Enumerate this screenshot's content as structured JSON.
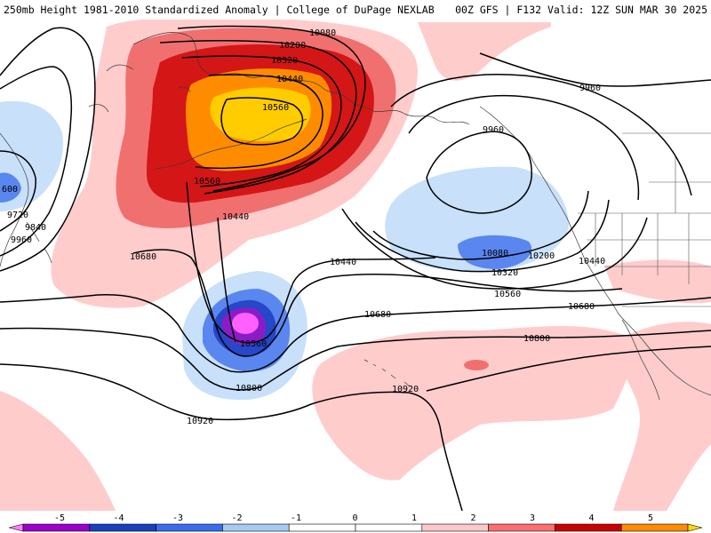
{
  "header": {
    "title": "250mb Height 1981-2010 Standardized Anomaly | College of DuPage NEXLAB",
    "run_info": "00Z GFS | F132 Valid: 12Z SUN MAR 30 2025"
  },
  "contour_labels": [
    {
      "id": "c10080-n",
      "text": "10080"
    },
    {
      "id": "c10200-n",
      "text": "10200"
    },
    {
      "id": "c10320-n",
      "text": "10320"
    },
    {
      "id": "c10440-n",
      "text": "10440"
    },
    {
      "id": "c10560-n",
      "text": "10560"
    },
    {
      "id": "c10560-w",
      "text": "10560"
    },
    {
      "id": "c10440-w",
      "text": "10440"
    },
    {
      "id": "c10680-w",
      "text": "10680"
    },
    {
      "id": "c9960-e",
      "text": "9960"
    },
    {
      "id": "c9960-c",
      "text": "9960"
    },
    {
      "id": "c9720-w",
      "text": "9720"
    },
    {
      "id": "c9840-w",
      "text": "9840"
    },
    {
      "id": "c9960-w",
      "text": "9960"
    },
    {
      "id": "c9600-w",
      "text": "600"
    },
    {
      "id": "c10080-e",
      "text": "10080"
    },
    {
      "id": "c10200-e",
      "text": "10200"
    },
    {
      "id": "c10320-e",
      "text": "10320"
    },
    {
      "id": "c10440-e",
      "text": "10440"
    },
    {
      "id": "c10440-m",
      "text": "10440"
    },
    {
      "id": "c10560-e",
      "text": "10560"
    },
    {
      "id": "c10680-m",
      "text": "10680"
    },
    {
      "id": "c10680-e",
      "text": "10680"
    },
    {
      "id": "c10800-m",
      "text": "10800"
    },
    {
      "id": "c10560-s",
      "text": "10560"
    },
    {
      "id": "c10800-s",
      "text": "10800"
    },
    {
      "id": "c10920-m",
      "text": "10920"
    },
    {
      "id": "c10920-s",
      "text": "10920"
    }
  ],
  "colorbar": {
    "ticks": [
      "-5",
      "-4",
      "-3",
      "-2",
      "-1",
      "0",
      "1",
      "2",
      "3",
      "4",
      "5"
    ],
    "colors": [
      "#ff80ff",
      "#9b00cc",
      "#1a3fbf",
      "#3a6cf0",
      "#a6c9f5",
      "#ffffff",
      "#ffffff",
      "#ffc8c8",
      "#ff6e6e",
      "#cc0000",
      "#ff8c00",
      "#ffd800"
    ]
  },
  "anomaly_colors": {
    "pos1": "#ffcccc",
    "pos2": "#f07070",
    "pos3": "#d41616",
    "pos4": "#ff8c00",
    "pos5": "#ffcc00",
    "neg1": "#c8e0fa",
    "neg2": "#5a86f0",
    "neg3": "#2547c8",
    "neg4": "#8a1cc8",
    "neg5": "#ff60ff"
  }
}
